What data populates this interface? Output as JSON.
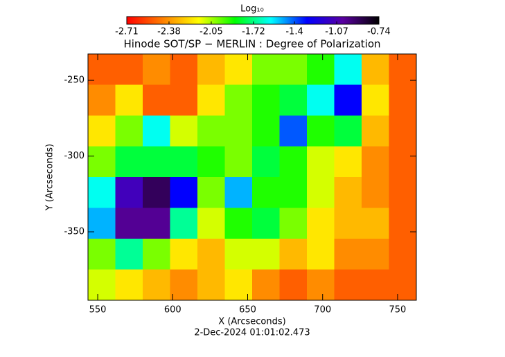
{
  "chart_data": {
    "type": "heatmap",
    "title": "Hinode SOT/SP − MERLIN : Degree of Polarization",
    "colorbar_title": "Log₁₀",
    "x_label": "X (Arcseconds)",
    "y_label": "Y (Arcseconds)",
    "footer": "2-Dec-2024 01:01:02.473",
    "xlim": [
      543.5,
      762.5
    ],
    "ylim": [
      -395.2,
      -232.6
    ],
    "xticks": [
      550,
      600,
      650,
      700,
      750
    ],
    "yticks": [
      -350,
      -300,
      -250
    ],
    "clim": [
      -2.71,
      -0.74
    ],
    "cticks": [
      -2.71,
      -2.38,
      -2.05,
      -1.72,
      -1.4,
      -1.07,
      -0.74
    ],
    "colormap": [
      "#ff0000",
      "#ff7f00",
      "#ffff00",
      "#00ff00",
      "#00ffff",
      "#0000ff",
      "#5a00a0",
      "#000000"
    ],
    "z": [
      [
        -2.5,
        -2.5,
        -2.4,
        -2.5,
        -2.3,
        -2.2,
        -2.0,
        -2.0,
        -1.9,
        -1.6,
        -2.3,
        -2.5
      ],
      [
        -2.4,
        -2.2,
        -2.5,
        -2.5,
        -2.2,
        -2.0,
        -1.9,
        -1.8,
        -1.6,
        -1.3,
        -2.2,
        -2.5
      ],
      [
        -2.2,
        -2.0,
        -1.6,
        -2.1,
        -2.0,
        -2.0,
        -1.9,
        -1.4,
        -1.9,
        -1.8,
        -2.3,
        -2.5
      ],
      [
        -2.0,
        -1.8,
        -1.8,
        -1.8,
        -1.9,
        -2.0,
        -1.8,
        -1.9,
        -2.1,
        -2.2,
        -2.4,
        -2.5
      ],
      [
        -1.6,
        -1.1,
        -0.9,
        -1.3,
        -2.0,
        -1.5,
        -1.9,
        -1.9,
        -2.1,
        -2.3,
        -2.4,
        -2.5
      ],
      [
        -1.5,
        -1.0,
        -1.0,
        -1.7,
        -2.1,
        -1.9,
        -1.8,
        -2.0,
        -2.2,
        -2.3,
        -2.3,
        -2.5
      ],
      [
        -2.0,
        -1.7,
        -2.0,
        -2.2,
        -2.3,
        -2.1,
        -2.1,
        -2.3,
        -2.2,
        -2.4,
        -2.4,
        -2.5
      ],
      [
        -2.1,
        -2.2,
        -2.3,
        -2.4,
        -2.3,
        -2.2,
        -2.4,
        -2.5,
        -2.4,
        -2.5,
        -2.5,
        -2.5
      ]
    ]
  }
}
